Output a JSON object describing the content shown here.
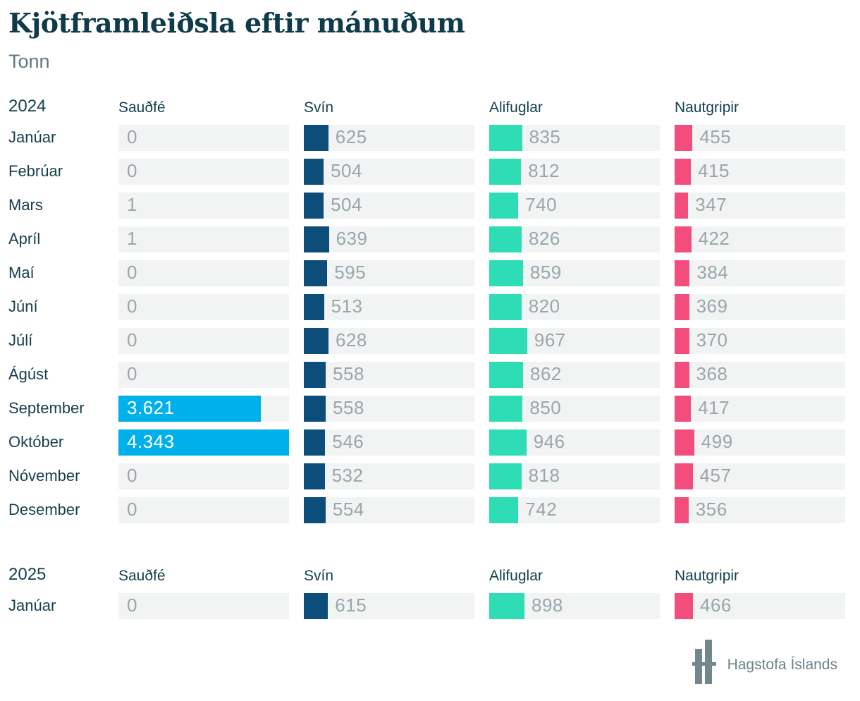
{
  "page": {
    "title": "Kjötframleiðsla eftir mánuðum",
    "subtitle": "Tonn",
    "footer": {
      "brand": "Hagstofa Íslands"
    }
  },
  "colors": {
    "sheep_bar": "#00b0eb",
    "pig_bar": "#0d4d79",
    "poultry_bar": "#2eddb6",
    "cattle_bar": "#f34d7e",
    "track_bg": "#f2f3f3",
    "value_text": "#9aa6ad",
    "inside_value_text": "#ffffff",
    "heading_text": "#14404f",
    "title_text": "#0e3a49",
    "logo_gray": "#72868e"
  },
  "chart_data": {
    "type": "bar",
    "orientation": "horizontal",
    "title": "Kjötframleiðsla eftir mánuðum",
    "unit": "Tonn",
    "max_value": 4343,
    "columns": [
      "Sauðfé",
      "Svín",
      "Alifuglar",
      "Nautgripir"
    ],
    "sections": [
      {
        "year": "2024",
        "categories": [
          "Janúar",
          "Febrúar",
          "Mars",
          "Apríl",
          "Maí",
          "Júní",
          "Júlí",
          "Ágúst",
          "September",
          "Október",
          "Nóvember",
          "Desember"
        ],
        "series": [
          {
            "name": "Sauðfé",
            "color": "#00b0eb",
            "values": [
              0,
              0,
              1,
              1,
              0,
              0,
              0,
              0,
              3621,
              4343,
              0,
              0
            ],
            "labels": [
              "0",
              "0",
              "1",
              "1",
              "0",
              "0",
              "0",
              "0",
              "3.621",
              "4.343",
              "0",
              "0"
            ]
          },
          {
            "name": "Svín",
            "color": "#0d4d79",
            "values": [
              625,
              504,
              504,
              639,
              595,
              513,
              628,
              558,
              558,
              546,
              532,
              554
            ]
          },
          {
            "name": "Alifuglar",
            "color": "#2eddb6",
            "values": [
              835,
              812,
              740,
              826,
              859,
              820,
              967,
              862,
              850,
              946,
              818,
              742
            ]
          },
          {
            "name": "Nautgripir",
            "color": "#f34d7e",
            "values": [
              455,
              415,
              347,
              422,
              384,
              369,
              370,
              368,
              417,
              499,
              457,
              356
            ]
          }
        ]
      },
      {
        "year": "2025",
        "categories": [
          "Janúar"
        ],
        "series": [
          {
            "name": "Sauðfé",
            "color": "#00b0eb",
            "values": [
              0
            ],
            "labels": [
              "0"
            ]
          },
          {
            "name": "Svín",
            "color": "#0d4d79",
            "values": [
              615
            ]
          },
          {
            "name": "Alifuglar",
            "color": "#2eddb6",
            "values": [
              898
            ]
          },
          {
            "name": "Nautgripir",
            "color": "#f34d7e",
            "values": [
              466
            ]
          }
        ]
      }
    ]
  }
}
